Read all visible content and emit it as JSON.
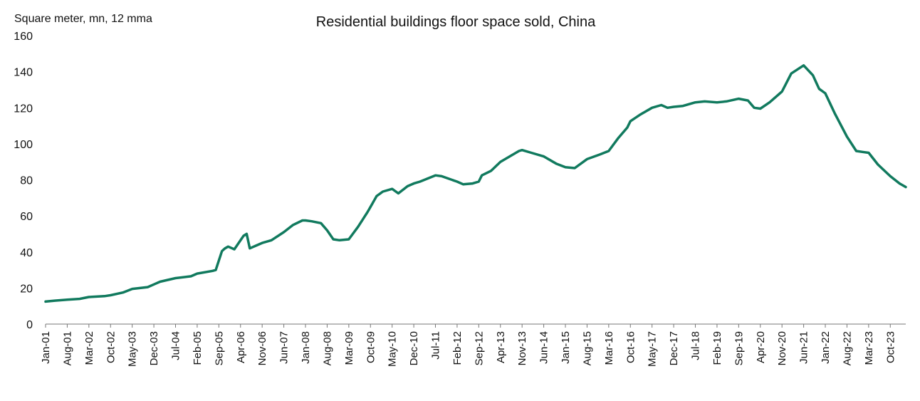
{
  "chart_data": {
    "type": "line",
    "title": "Residential buildings floor space sold, China",
    "unit_label": "Square meter, mn, 12 mma",
    "xlabel": "",
    "ylabel": "",
    "ylim": [
      0,
      160
    ],
    "yticks": [
      0,
      20,
      40,
      60,
      80,
      100,
      120,
      140,
      160
    ],
    "grid": false,
    "legend": "none",
    "line_color": "#117a5e",
    "x_tick_labels": [
      "Jan-01",
      "Aug-01",
      "Mar-02",
      "Oct-02",
      "May-03",
      "Dec-03",
      "Jul-04",
      "Feb-05",
      "Sep-05",
      "Apr-06",
      "Nov-06",
      "Jun-07",
      "Jan-08",
      "Aug-08",
      "Mar-09",
      "Oct-09",
      "May-10",
      "Dec-10",
      "Jul-11",
      "Feb-12",
      "Sep-12",
      "Apr-13",
      "Nov-13",
      "Jun-14",
      "Jan-15",
      "Aug-15",
      "Mar-16",
      "Oct-16",
      "May-17",
      "Dec-17",
      "Jul-18",
      "Feb-19",
      "Sep-19",
      "Apr-20",
      "Nov-20",
      "Jun-21",
      "Jan-22",
      "Aug-22",
      "Mar-23",
      "Oct-23"
    ],
    "series": [
      {
        "x": [
          "Jan-01",
          "Apr-01",
          "Aug-01",
          "Dec-01",
          "Mar-02",
          "Aug-02",
          "Oct-02",
          "Feb-03",
          "May-03",
          "Oct-03",
          "Dec-03",
          "Feb-04",
          "Jul-04",
          "Dec-04",
          "Feb-05",
          "Jul-05",
          "Aug-05",
          "Oct-05",
          "Nov-05",
          "Dec-05",
          "Feb-06",
          "May-06",
          "Jun-06",
          "Jul-06",
          "Sep-06",
          "Nov-06",
          "Feb-07",
          "Jun-07",
          "Sep-07",
          "Dec-07",
          "Jan-08",
          "Mar-08",
          "Jun-08",
          "Aug-08",
          "Oct-08",
          "Dec-08",
          "Mar-09",
          "Jun-09",
          "Sep-09",
          "Oct-09",
          "Dec-09",
          "Feb-10",
          "May-10",
          "Jul-10",
          "Oct-10",
          "Dec-10",
          "Feb-11",
          "Jul-11",
          "Sep-11",
          "Feb-12",
          "Apr-12",
          "Jul-12",
          "Sep-12",
          "Oct-12",
          "Jan-13",
          "Apr-13",
          "Jul-13",
          "Oct-13",
          "Nov-13",
          "Feb-14",
          "Jun-14",
          "Oct-14",
          "Jan-15",
          "Apr-15",
          "Aug-15",
          "Dec-15",
          "Mar-16",
          "Jun-16",
          "Sep-16",
          "Oct-16",
          "Jan-17",
          "May-17",
          "Aug-17",
          "Oct-17",
          "Dec-17",
          "Mar-18",
          "Jul-18",
          "Oct-18",
          "Feb-19",
          "May-19",
          "Sep-19",
          "Dec-19",
          "Feb-20",
          "Apr-20",
          "Jul-20",
          "Nov-20",
          "Feb-21",
          "Jun-21",
          "Sep-21",
          "Nov-21",
          "Jan-22",
          "Apr-22",
          "Aug-22",
          "Nov-22",
          "Jan-23",
          "Mar-23",
          "Jun-23",
          "Oct-23",
          "Jan-24",
          "Mar-24"
        ],
        "values": [
          12.5,
          13.0,
          13.5,
          14.0,
          15.0,
          15.5,
          16.0,
          17.5,
          19.5,
          20.5,
          22.0,
          23.5,
          25.5,
          26.5,
          28.0,
          29.5,
          30.0,
          40.5,
          42.0,
          43.0,
          41.5,
          49.0,
          50.0,
          42.0,
          43.5,
          45.0,
          46.5,
          51.0,
          55.0,
          57.5,
          57.5,
          57.0,
          56.0,
          52.0,
          47.0,
          46.5,
          47.0,
          54.0,
          62.0,
          65.0,
          71.0,
          73.5,
          75.0,
          72.5,
          76.5,
          78.0,
          79.0,
          82.5,
          82.0,
          79.0,
          77.5,
          78.0,
          79.0,
          82.5,
          85.0,
          90.0,
          93.0,
          96.0,
          96.5,
          95.0,
          93.0,
          89.0,
          87.0,
          86.5,
          91.5,
          94.0,
          96.0,
          103.0,
          109.0,
          112.5,
          116.0,
          120.0,
          121.5,
          120.0,
          120.5,
          121.0,
          123.0,
          123.5,
          123.0,
          123.5,
          125.0,
          124.0,
          120.0,
          119.5,
          123.0,
          129.0,
          139.0,
          143.5,
          138.0,
          130.5,
          128.0,
          117.0,
          104.0,
          96.0,
          95.5,
          95.0,
          88.5,
          82.0,
          78.0,
          76.0
        ]
      }
    ]
  }
}
